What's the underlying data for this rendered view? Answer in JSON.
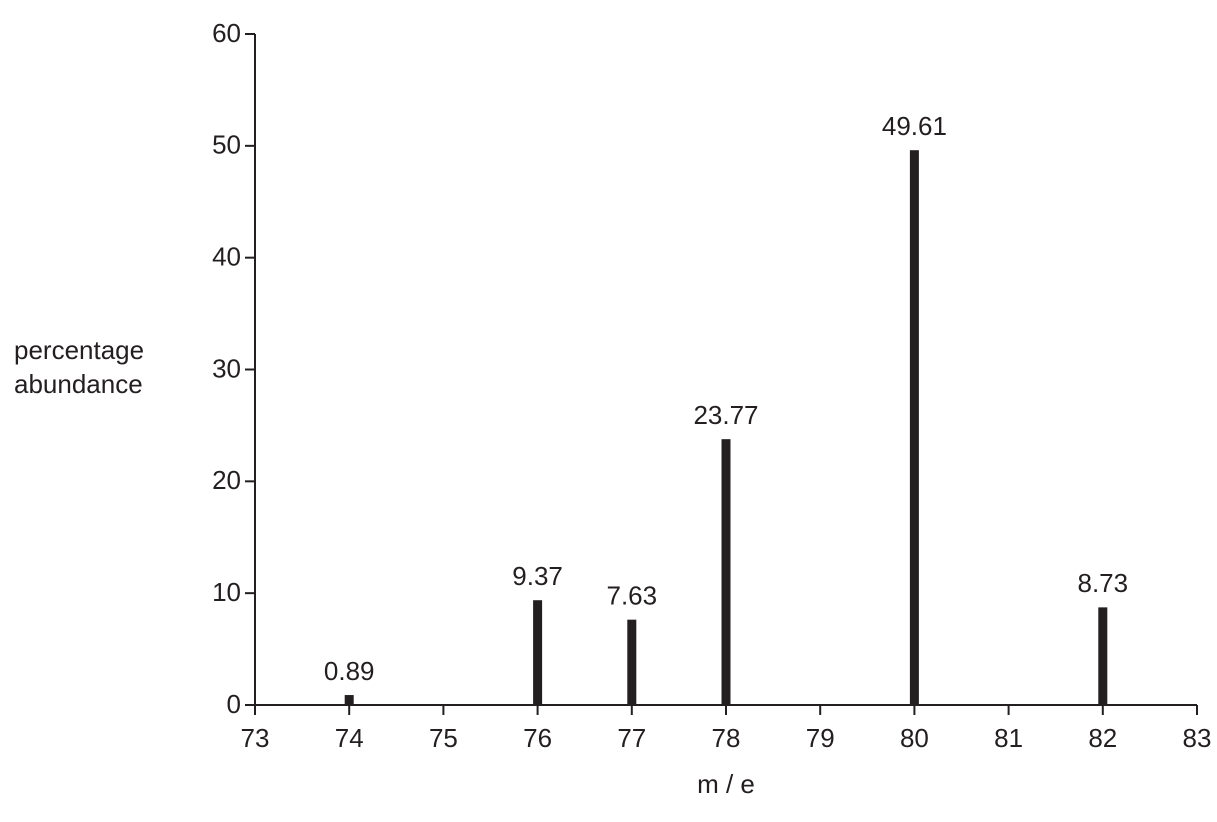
{
  "chart_data": {
    "type": "bar",
    "x": [
      74,
      76,
      77,
      78,
      80,
      82
    ],
    "values": [
      0.89,
      9.37,
      7.63,
      23.77,
      49.61,
      8.73
    ],
    "color": "#231f20",
    "xlabel": "m / e",
    "ylabel": "percentage abundance",
    "xlim": [
      73,
      83
    ],
    "xticks": [
      73,
      74,
      75,
      76,
      77,
      78,
      79,
      80,
      81,
      82,
      83
    ],
    "ylim": [
      0,
      60
    ],
    "yticks": [
      0,
      10,
      20,
      30,
      40,
      50,
      60
    ],
    "grid": false
  }
}
